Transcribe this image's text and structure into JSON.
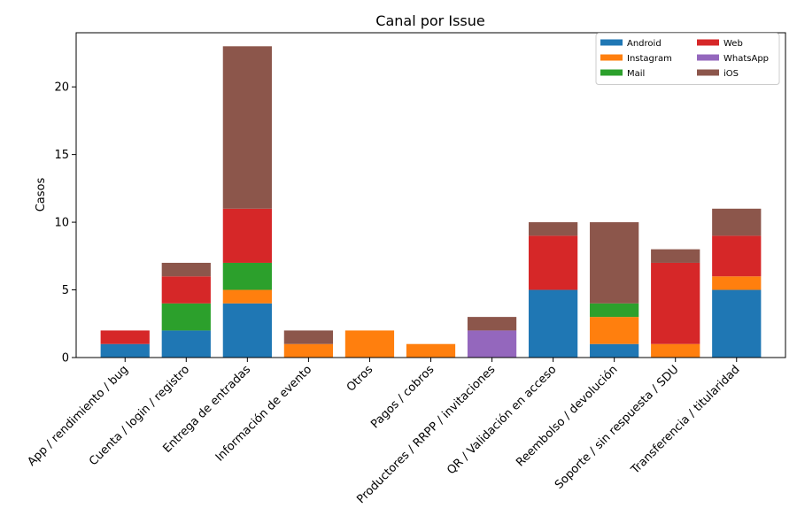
{
  "chart_data": {
    "type": "bar",
    "stacked": true,
    "title": "Canal por Issue",
    "xlabel": "",
    "ylabel": "Casos",
    "ylim": [
      0,
      24
    ],
    "yticks": [
      0,
      5,
      10,
      15,
      20
    ],
    "grid": false,
    "legend_position": "top-right",
    "legend_columns": 2,
    "categories": [
      "App / rendimiento / bug",
      "Cuenta / login / registro",
      "Entrega de entradas",
      "Información de evento",
      "Otros",
      "Pagos / cobros",
      "Productores / RRPP / invitaciones",
      "QR / Validación en acceso",
      "Reembolso / devolución",
      "Soporte / sin respuesta / SDU",
      "Transferencia / titularidad"
    ],
    "series": [
      {
        "name": "Android",
        "color": "#1f77b4",
        "values": [
          1,
          2,
          4,
          0,
          0,
          0,
          0,
          5,
          1,
          0,
          5
        ]
      },
      {
        "name": "Instagram",
        "color": "#ff7f0e",
        "values": [
          0,
          0,
          1,
          1,
          2,
          1,
          0,
          0,
          2,
          1,
          1
        ]
      },
      {
        "name": "Mail",
        "color": "#2ca02c",
        "values": [
          0,
          2,
          2,
          0,
          0,
          0,
          0,
          0,
          1,
          0,
          0
        ]
      },
      {
        "name": "Web",
        "color": "#d62728",
        "values": [
          1,
          2,
          4,
          0,
          0,
          0,
          0,
          4,
          0,
          6,
          3
        ]
      },
      {
        "name": "WhatsApp",
        "color": "#9467bd",
        "values": [
          0,
          0,
          0,
          0,
          0,
          0,
          2,
          0,
          0,
          0,
          0
        ]
      },
      {
        "name": "iOS",
        "color": "#8c564b",
        "values": [
          0,
          1,
          12,
          1,
          0,
          0,
          1,
          1,
          6,
          1,
          2
        ]
      }
    ]
  }
}
